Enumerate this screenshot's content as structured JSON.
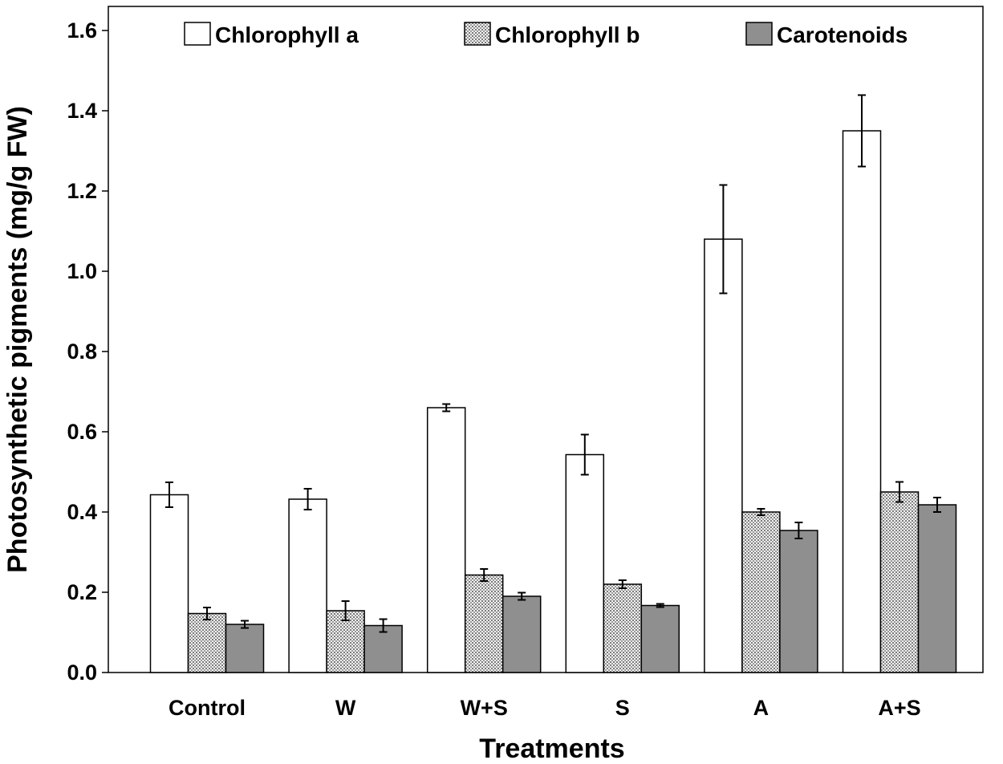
{
  "chart_data": {
    "type": "bar",
    "title": "",
    "xlabel": "Treatments",
    "ylabel": "Photosynthetic pigments (mg/g FW)",
    "ylim": [
      0,
      1.6
    ],
    "yticks": [
      "0.0",
      "0.2",
      "0.4",
      "0.6",
      "0.8",
      "1.0",
      "1.2",
      "1.4",
      "1.6"
    ],
    "categories": [
      "Control",
      "W",
      "W+S",
      "S",
      "A",
      "A+S"
    ],
    "legend_position": "top",
    "grid": false,
    "series": [
      {
        "name": "Chlorophyll a",
        "fill": "#ffffff",
        "pattern": "none",
        "values": [
          0.443,
          0.432,
          0.66,
          0.543,
          1.08,
          1.35
        ],
        "errors": [
          0.031,
          0.026,
          0.009,
          0.05,
          0.135,
          0.089
        ]
      },
      {
        "name": "Chlorophyll b",
        "fill": "#dcdcdc",
        "pattern": "dots",
        "values": [
          0.147,
          0.154,
          0.243,
          0.22,
          0.4,
          0.45
        ],
        "errors": [
          0.015,
          0.024,
          0.015,
          0.01,
          0.008,
          0.025
        ]
      },
      {
        "name": "Carotenoids",
        "fill": "#8f8f8f",
        "pattern": "none",
        "values": [
          0.12,
          0.117,
          0.19,
          0.167,
          0.354,
          0.418
        ],
        "errors": [
          0.009,
          0.016,
          0.009,
          0.004,
          0.02,
          0.018
        ]
      }
    ]
  }
}
